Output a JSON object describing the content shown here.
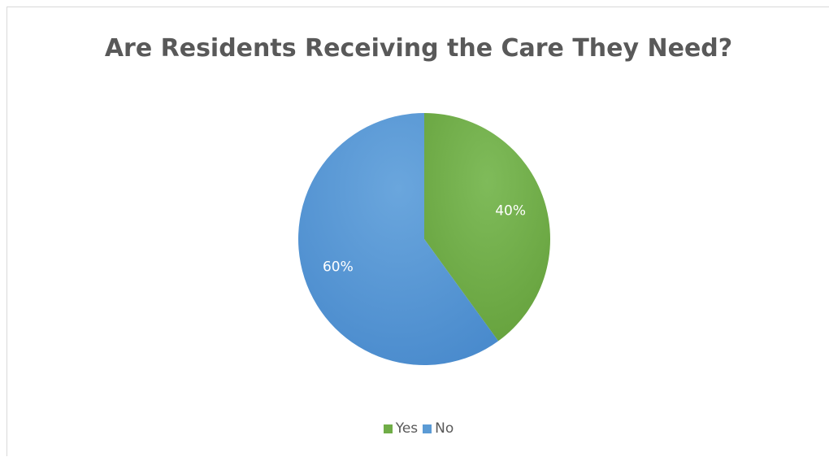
{
  "chart_data": {
    "type": "pie",
    "title": "Are Residents Receiving the Care They Need?",
    "categories": [
      "Yes",
      "No"
    ],
    "values": [
      40,
      60
    ],
    "data_labels": [
      "40%",
      "60%"
    ],
    "colors": [
      "#70ad47",
      "#5b9bd5"
    ],
    "legend_position": "bottom",
    "legend": [
      {
        "label": "Yes",
        "color": "#70ad47"
      },
      {
        "label": "No",
        "color": "#5b9bd5"
      }
    ]
  }
}
